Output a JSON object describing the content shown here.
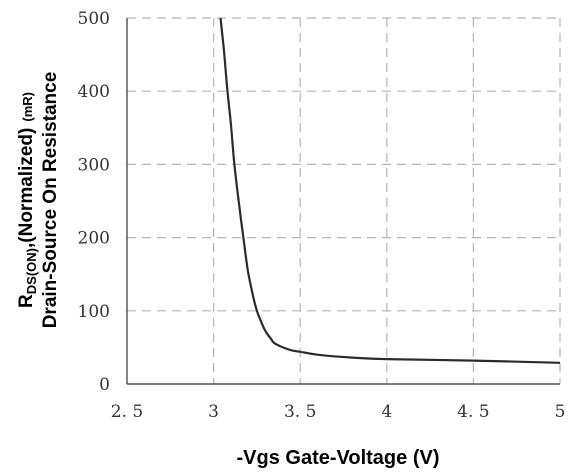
{
  "chart_data": {
    "type": "line",
    "xlabel": "-Vgs Gate-Voltage (V)",
    "ylabel_line1_main": "R",
    "ylabel_line1_sub": "DS(ON)",
    "ylabel_line1_rest": ",(Normalized)",
    "ylabel_unit": "(mR)",
    "ylabel_line2": "Drain-Source On Resistance",
    "xlim": [
      2.5,
      5
    ],
    "ylim": [
      0,
      500
    ],
    "x_ticks": [
      2.5,
      3,
      3.5,
      4,
      4.5,
      5
    ],
    "x_tick_labels": [
      "2. 5",
      "3",
      "3. 5",
      "4",
      "4. 5",
      "5"
    ],
    "y_ticks": [
      0,
      100,
      200,
      300,
      400,
      500
    ],
    "y_tick_labels": [
      "0",
      "100",
      "200",
      "300",
      "400",
      "500"
    ],
    "grid": true,
    "series": [
      {
        "x": [
          3.04,
          3.06,
          3.08,
          3.1,
          3.12,
          3.15,
          3.18,
          3.2,
          3.23,
          3.25,
          3.28,
          3.3,
          3.33,
          3.35,
          3.4,
          3.45,
          3.5,
          3.6,
          3.8,
          4.0,
          4.5,
          5.0
        ],
        "y": [
          500,
          455,
          400,
          355,
          300,
          240,
          185,
          152,
          118,
          100,
          82,
          72,
          62,
          56,
          50,
          46,
          44,
          40,
          36,
          34,
          32,
          29
        ],
        "color": "#2b2b2b"
      }
    ]
  }
}
